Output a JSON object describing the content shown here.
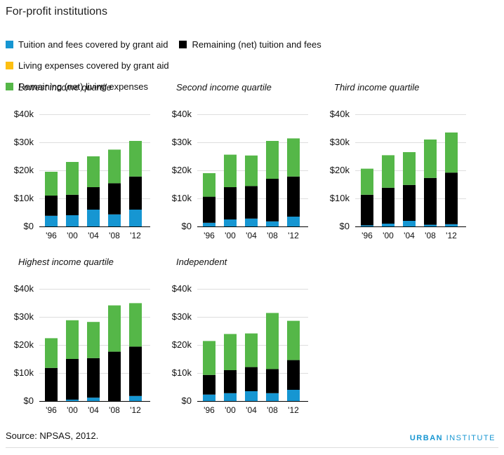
{
  "title": "For-profit institutions",
  "legend": [
    {
      "label": "Tuition and fees covered by grant aid",
      "color": "#1696d2"
    },
    {
      "label": "Remaining (net) tuition and fees",
      "color": "#000000"
    },
    {
      "label": "Living expenses covered by grant aid",
      "color": "#fdbf11"
    },
    {
      "label": "Remaining (net) living expenses",
      "color": "#55b748"
    }
  ],
  "source": "Source: NPSAS, 2012.",
  "brand": {
    "part1": "URBAN",
    "part2": "INSTITUTE"
  },
  "chart_data": [
    {
      "type": "bar",
      "stacked": true,
      "title": "Lowest income quartile",
      "categories": [
        "'96",
        "'00",
        "'04",
        "'08",
        "'12"
      ],
      "ylim": [
        0,
        40000
      ],
      "yticks": [
        "$0",
        "$10k",
        "$20k",
        "$30k",
        "$40k"
      ],
      "series": [
        {
          "name": "Tuition and fees covered by grant aid",
          "values": [
            3800,
            4000,
            6000,
            4300,
            6000
          ]
        },
        {
          "name": "Remaining (net) tuition and fees",
          "values": [
            7200,
            7300,
            8000,
            11100,
            11800
          ]
        },
        {
          "name": "Living expenses covered by grant aid",
          "values": [
            0,
            0,
            0,
            0,
            0
          ]
        },
        {
          "name": "Remaining (net) living expenses",
          "values": [
            8500,
            11700,
            11000,
            12000,
            12700
          ]
        }
      ]
    },
    {
      "type": "bar",
      "stacked": true,
      "title": "Second income quartile",
      "categories": [
        "'96",
        "'00",
        "'04",
        "'08",
        "'12"
      ],
      "ylim": [
        0,
        40000
      ],
      "yticks": [
        "$0",
        "$10k",
        "$20k",
        "$30k",
        "$40k"
      ],
      "series": [
        {
          "name": "Tuition and fees covered by grant aid",
          "values": [
            1300,
            2500,
            2800,
            1800,
            3500
          ]
        },
        {
          "name": "Remaining (net) tuition and fees",
          "values": [
            9300,
            11500,
            11600,
            15200,
            14300
          ]
        },
        {
          "name": "Living expenses covered by grant aid",
          "values": [
            0,
            0,
            0,
            0,
            0
          ]
        },
        {
          "name": "Remaining (net) living expenses",
          "values": [
            8400,
            11600,
            10900,
            13500,
            13600
          ]
        }
      ]
    },
    {
      "type": "bar",
      "stacked": true,
      "title": "Third income quartile",
      "categories": [
        "'96",
        "'00",
        "'04",
        "'08",
        "'12"
      ],
      "ylim": [
        0,
        40000
      ],
      "yticks": [
        "$0",
        "$10k",
        "$20k",
        "$30k",
        "$40k"
      ],
      "series": [
        {
          "name": "Tuition and fees covered by grant aid",
          "values": [
            400,
            1000,
            2000,
            600,
            800
          ]
        },
        {
          "name": "Remaining (net) tuition and fees",
          "values": [
            10900,
            12800,
            12800,
            16700,
            18400
          ]
        },
        {
          "name": "Living expenses covered by grant aid",
          "values": [
            0,
            0,
            0,
            0,
            0
          ]
        },
        {
          "name": "Remaining (net) living expenses",
          "values": [
            9300,
            11600,
            11700,
            13700,
            14300
          ]
        }
      ]
    },
    {
      "type": "bar",
      "stacked": true,
      "title": "Highest income quartile",
      "categories": [
        "'96",
        "'00",
        "'04",
        "'08",
        "'12"
      ],
      "ylim": [
        0,
        40000
      ],
      "yticks": [
        "$0",
        "$10k",
        "$20k",
        "$30k",
        "$40k"
      ],
      "series": [
        {
          "name": "Tuition and fees covered by grant aid",
          "values": [
            0,
            500,
            1200,
            0,
            1800
          ]
        },
        {
          "name": "Remaining (net) tuition and fees",
          "values": [
            11800,
            14500,
            14100,
            17600,
            17600
          ]
        },
        {
          "name": "Living expenses covered by grant aid",
          "values": [
            0,
            0,
            0,
            0,
            0
          ]
        },
        {
          "name": "Remaining (net) living expenses",
          "values": [
            10600,
            13800,
            12900,
            16500,
            15500
          ]
        }
      ]
    },
    {
      "type": "bar",
      "stacked": true,
      "title": "Independent",
      "categories": [
        "'96",
        "'00",
        "'04",
        "'08",
        "'12"
      ],
      "ylim": [
        0,
        40000
      ],
      "yticks": [
        "$0",
        "$10k",
        "$20k",
        "$30k",
        "$40k"
      ],
      "series": [
        {
          "name": "Tuition and fees covered by grant aid",
          "values": [
            2300,
            2800,
            3500,
            2800,
            4000
          ]
        },
        {
          "name": "Remaining (net) tuition and fees",
          "values": [
            7000,
            8200,
            8600,
            8600,
            10600
          ]
        },
        {
          "name": "Living expenses covered by grant aid",
          "values": [
            0,
            0,
            0,
            0,
            0
          ]
        },
        {
          "name": "Remaining (net) living expenses",
          "values": [
            12100,
            12900,
            12000,
            20000,
            14000
          ]
        }
      ]
    }
  ]
}
